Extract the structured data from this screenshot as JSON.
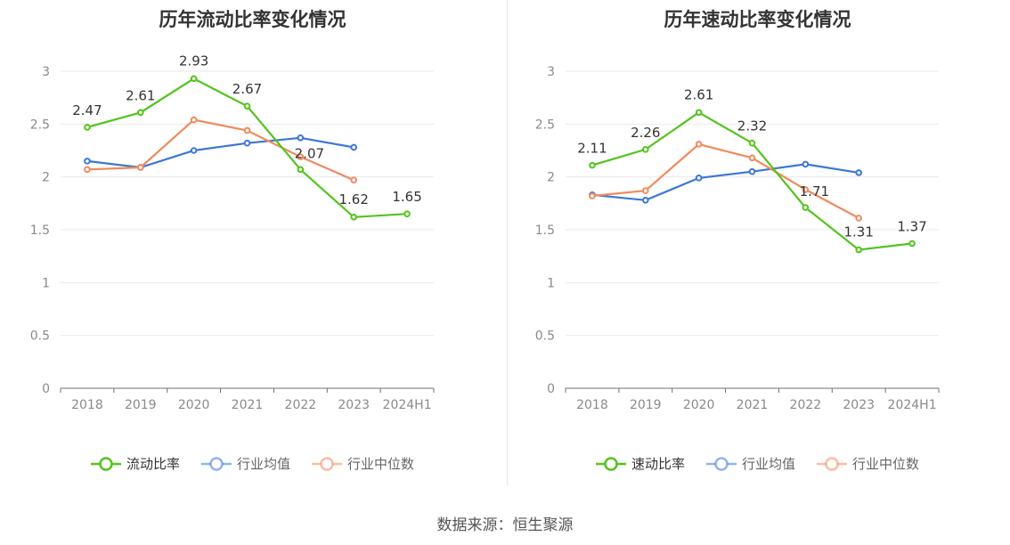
{
  "source_label": "数据来源：恒生聚源",
  "chart_data": [
    {
      "type": "line",
      "title": "历年流动比率变化情况",
      "categories": [
        "2018",
        "2019",
        "2020",
        "2021",
        "2022",
        "2023",
        "2024H1"
      ],
      "ylim": [
        0,
        3
      ],
      "yticks": [
        0,
        0.5,
        1,
        1.5,
        2,
        2.5,
        3
      ],
      "ytick_labels": [
        "0",
        "0.5",
        "1",
        "1.5",
        "2",
        "2.5",
        "3"
      ],
      "grid": true,
      "legend_position": "bottom",
      "series": [
        {
          "name": "流动比率",
          "color": "#52c41a",
          "values": [
            2.47,
            2.61,
            2.93,
            2.67,
            2.07,
            1.62,
            1.65
          ],
          "labels": [
            "2.47",
            "2.61",
            "2.93",
            "2.67",
            "2.07",
            "1.62",
            "1.65"
          ]
        },
        {
          "name": "行业均值",
          "color": "#3a76d8",
          "values": [
            2.15,
            2.09,
            2.25,
            2.32,
            2.37,
            2.28,
            null
          ]
        },
        {
          "name": "行业中位数",
          "color": "#f08a5d",
          "values": [
            2.07,
            2.09,
            2.54,
            2.44,
            2.19,
            1.97,
            null
          ]
        }
      ]
    },
    {
      "type": "line",
      "title": "历年速动比率变化情况",
      "categories": [
        "2018",
        "2019",
        "2020",
        "2021",
        "2022",
        "2023",
        "2024H1"
      ],
      "ylim": [
        0,
        3
      ],
      "yticks": [
        0,
        0.5,
        1,
        1.5,
        2,
        2.5,
        3
      ],
      "ytick_labels": [
        "0",
        "0.5",
        "1",
        "1.5",
        "2",
        "2.5",
        "3"
      ],
      "grid": true,
      "legend_position": "bottom",
      "series": [
        {
          "name": "速动比率",
          "color": "#52c41a",
          "values": [
            2.11,
            2.26,
            2.61,
            2.32,
            1.71,
            1.31,
            1.37
          ],
          "labels": [
            "2.11",
            "2.26",
            "2.61",
            "2.32",
            "1.71",
            "1.31",
            "1.37"
          ]
        },
        {
          "name": "行业均值",
          "color": "#3a76d8",
          "values": [
            1.83,
            1.78,
            1.99,
            2.05,
            2.12,
            2.04,
            null
          ]
        },
        {
          "name": "行业中位数",
          "color": "#f08a5d",
          "values": [
            1.82,
            1.87,
            2.31,
            2.18,
            1.88,
            1.61,
            null
          ]
        }
      ]
    }
  ]
}
